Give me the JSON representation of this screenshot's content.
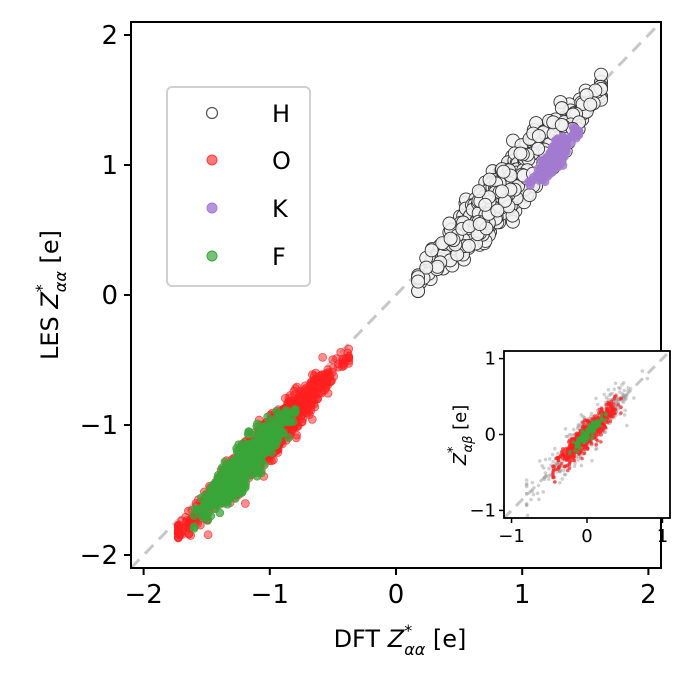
{
  "chart_data": [
    {
      "type": "scatter",
      "main_axes": true,
      "xlabel_prefix": "DFT",
      "ylabel_prefix": "LES",
      "label_symbol": "Z",
      "label_sup": "*",
      "label_sub": "αα",
      "label_unit": "[e]",
      "xlim": [
        -2.1,
        2.1
      ],
      "ylim": [
        -2.1,
        2.1
      ],
      "xticks": [
        -2,
        -1,
        0,
        1,
        2
      ],
      "yticks": [
        -2,
        -1,
        0,
        1,
        2
      ],
      "xtick_labels": [
        "−2",
        "−1",
        "0",
        "1",
        "2"
      ],
      "ytick_labels": [
        "−2",
        "−1",
        "0",
        "1",
        "2"
      ],
      "diagonal": {
        "from": [
          -2.1,
          -2.1
        ],
        "to": [
          2.1,
          2.1
        ],
        "color": "#c8c8c8",
        "style": "dashed"
      },
      "legend": {
        "location": "upper-left",
        "entries": [
          "H",
          "O",
          "K",
          "F"
        ]
      },
      "series": [
        {
          "name": "H",
          "marker": "hollow-circle",
          "color": "#555555",
          "center": [
            0.9,
            0.85
          ],
          "x_range": [
            0.1,
            1.55
          ],
          "correlation": "strong",
          "count": 900
        },
        {
          "name": "O",
          "marker": "filled-circle",
          "color": "#ff2020",
          "center": [
            -1.05,
            -1.15
          ],
          "x_range": [
            -1.8,
            -0.45
          ],
          "correlation": "strong",
          "count": 1200
        },
        {
          "name": "K",
          "marker": "filled-circle",
          "color": "#a27bd0",
          "center": [
            1.25,
            1.05
          ],
          "x_range": [
            1.0,
            1.4
          ],
          "correlation": "strong",
          "count": 250
        },
        {
          "name": "F",
          "marker": "filled-circle",
          "color": "#3aa63a",
          "center": [
            -1.2,
            -1.3
          ],
          "x_range": [
            -1.6,
            -0.8
          ],
          "correlation": "strong",
          "count": 500
        }
      ]
    },
    {
      "type": "scatter",
      "inset": true,
      "ylabel_symbol": "Z",
      "ylabel_sup": "*",
      "ylabel_sub": "αβ",
      "ylabel_unit": "[e]",
      "xlim": [
        -1.1,
        1.1
      ],
      "ylim": [
        -1.1,
        1.1
      ],
      "xticks": [
        -1,
        0,
        1
      ],
      "yticks": [
        -1,
        0,
        1
      ],
      "xtick_labels": [
        "−1",
        "0",
        "1"
      ],
      "ytick_labels": [
        "−1",
        "0",
        "1"
      ],
      "diagonal": {
        "from": [
          -1.1,
          -1.1
        ],
        "to": [
          1.1,
          1.1
        ],
        "color": "#c8c8c8",
        "style": "dashed"
      },
      "series": [
        {
          "name": "H",
          "color": "#999999",
          "center": [
            0.0,
            0.0
          ],
          "x_range": [
            -0.8,
            0.8
          ],
          "count": 400
        },
        {
          "name": "O",
          "color": "#ff2020",
          "center": [
            0.0,
            0.0
          ],
          "x_range": [
            -0.45,
            0.45
          ],
          "count": 600
        },
        {
          "name": "F",
          "color": "#3aa63a",
          "center": [
            0.0,
            0.0
          ],
          "x_range": [
            -0.25,
            0.25
          ],
          "count": 150
        }
      ]
    }
  ]
}
